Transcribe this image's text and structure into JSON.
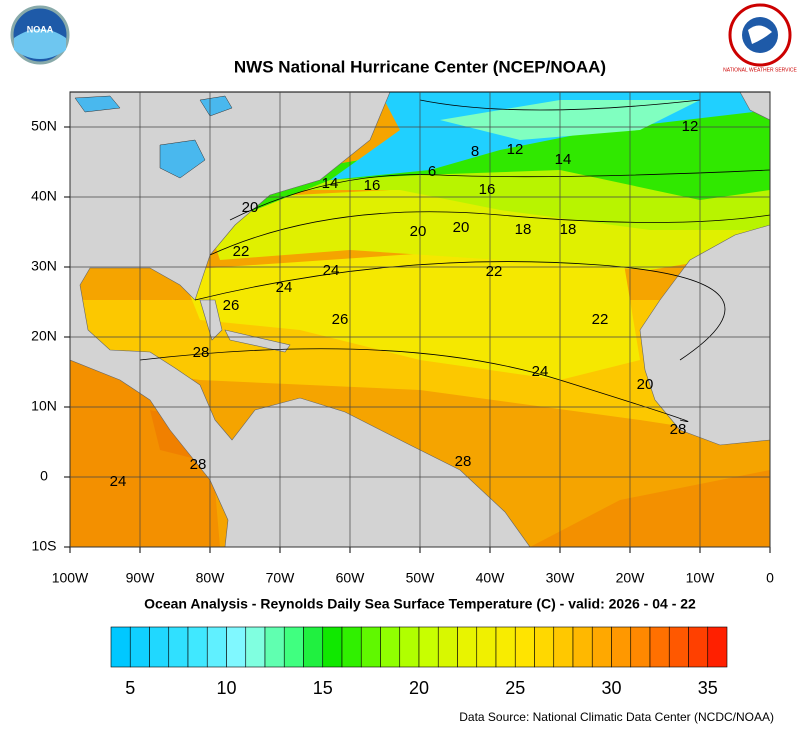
{
  "chart_data": {
    "type": "map",
    "title": "NWS National Hurricane Center (NCEP/NOAA)",
    "subtitle": "Ocean Analysis - Reynolds Daily Sea Surface Temperature (C) - valid: 2026 - 04 - 22",
    "source": "Data Source: National Climatic Data Center (NCDC/NOAA)",
    "logos": {
      "left": "NOAA",
      "right": "NATIONAL WEATHER SERVICE"
    },
    "xlim": [
      -100,
      0
    ],
    "ylim": [
      -10,
      55
    ],
    "xticks": [
      {
        "value": -100,
        "label": "100W"
      },
      {
        "value": -90,
        "label": "90W"
      },
      {
        "value": -80,
        "label": "80W"
      },
      {
        "value": -70,
        "label": "70W"
      },
      {
        "value": -60,
        "label": "60W"
      },
      {
        "value": -50,
        "label": "50W"
      },
      {
        "value": -40,
        "label": "40W"
      },
      {
        "value": -30,
        "label": "30W"
      },
      {
        "value": -20,
        "label": "20W"
      },
      {
        "value": -10,
        "label": "10W"
      },
      0
    ],
    "yticks": [
      {
        "value": -10,
        "label": "10S"
      },
      0,
      {
        "value": 10,
        "label": "10N"
      },
      {
        "value": 20,
        "label": "20N"
      },
      {
        "value": 30,
        "label": "30N"
      },
      {
        "value": 40,
        "label": "40N"
      },
      {
        "value": 50,
        "label": "50N"
      }
    ],
    "grid": true,
    "contour_labels": [
      12,
      6,
      8,
      12,
      14,
      14,
      16,
      16,
      20,
      20,
      20,
      18,
      18,
      22,
      24,
      24,
      22,
      22,
      26,
      26,
      28,
      24,
      20,
      28,
      28,
      28,
      24
    ],
    "colorbar": {
      "lim": [
        4,
        36
      ],
      "ticks": [
        5,
        10,
        15,
        20,
        25,
        30,
        35
      ],
      "colors": [
        "#00c8ff",
        "#10d0ff",
        "#20d8ff",
        "#30e0ff",
        "#40e8ff",
        "#60f0ff",
        "#80f8ff",
        "#80ffe0",
        "#60ffb0",
        "#40ff80",
        "#20f040",
        "#10e800",
        "#30f000",
        "#60f800",
        "#90ff00",
        "#b0ff00",
        "#c8ff00",
        "#d8f800",
        "#e8f400",
        "#f0f000",
        "#f8ec00",
        "#ffe400",
        "#ffd800",
        "#ffc800",
        "#ffb800",
        "#ffa800",
        "#ff9800",
        "#ff8800",
        "#ff7000",
        "#ff5800",
        "#ff4000",
        "#ff2000"
      ]
    }
  }
}
